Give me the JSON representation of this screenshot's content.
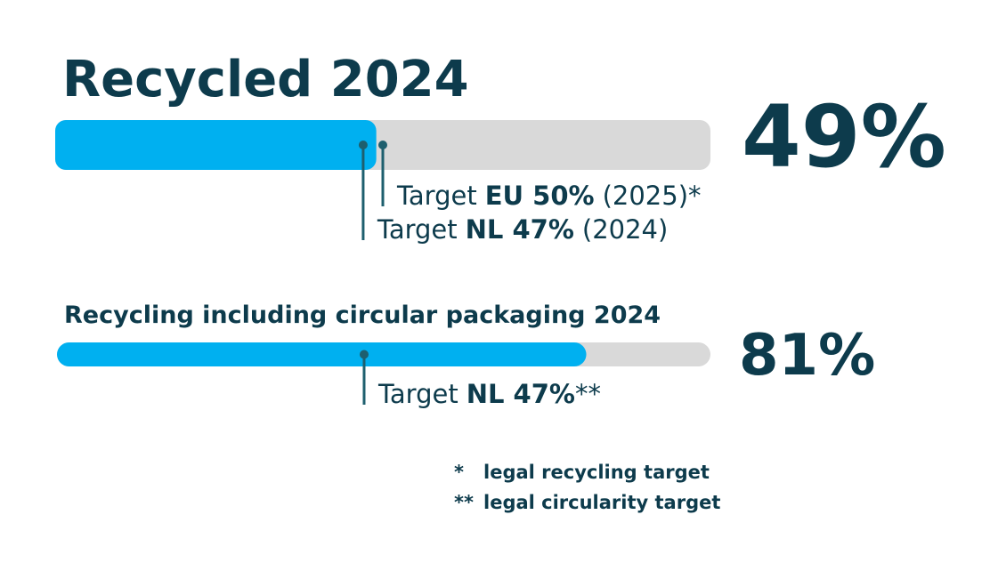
{
  "chart_data": [
    {
      "type": "progress",
      "title": "Recycled 2024",
      "value": 49,
      "value_label": "49%",
      "xlim": [
        0,
        100
      ],
      "color": "#00b0f0",
      "track_color": "#d9d9d9",
      "targets": [
        {
          "value": 50,
          "prefix": "Target",
          "label": "EU 50%",
          "suffix": "(2025)*"
        },
        {
          "value": 47,
          "prefix": "Target",
          "label": "NL 47%",
          "suffix": "(2024)"
        }
      ]
    },
    {
      "type": "progress",
      "title": "Recycling including circular packaging 2024",
      "value": 81,
      "value_label": "81%",
      "xlim": [
        0,
        100
      ],
      "color": "#00b0f0",
      "track_color": "#d9d9d9",
      "targets": [
        {
          "value": 47,
          "prefix": "Target",
          "label": "NL 47%",
          "suffix": "**"
        }
      ]
    }
  ],
  "footnotes": [
    {
      "mark": "*",
      "text": "legal recycling target"
    },
    {
      "mark": "**",
      "text": "legal circularity target"
    }
  ]
}
